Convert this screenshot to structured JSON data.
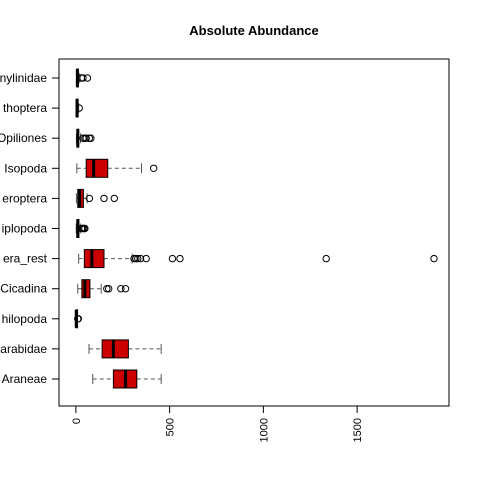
{
  "chart_data": {
    "type": "boxplot",
    "title": "Absolute Abundance",
    "xlabel": "",
    "ylabel": "",
    "orientation": "horizontal",
    "xlim": [
      -90,
      1990
    ],
    "x_ticks": [
      0,
      500,
      1000,
      1500
    ],
    "x_tick_labels": [
      "0",
      "500",
      "1000",
      "1500"
    ],
    "grid": false,
    "categories": [
      "Staphylinidae",
      "Orthoptera",
      "Opiliones",
      "Isopoda",
      "Heteroptera",
      "Diplopoda",
      "Coleoptera_rest",
      "Cicadina",
      "Chilopoda",
      "Carabidae",
      "Araneae"
    ],
    "category_labels_visible": [
      "nylinidae",
      "thoptera",
      "Opiliones",
      "Isopoda",
      "eroptera",
      "iplopoda",
      "era_rest",
      "Cicadina",
      "hilopoda",
      "arabidae",
      "Araneae"
    ],
    "boxes": [
      {
        "min": 3,
        "q1": 5,
        "median": 8,
        "q3": 12,
        "max": 20,
        "outliers": [
          30,
          38,
          62
        ]
      },
      {
        "min": 2,
        "q1": 4,
        "median": 6,
        "q3": 9,
        "max": 15,
        "outliers": [
          18
        ]
      },
      {
        "min": 3,
        "q1": 6,
        "median": 10,
        "q3": 15,
        "max": 25,
        "outliers": [
          38,
          48,
          55,
          72,
          80
        ]
      },
      {
        "min": 5,
        "q1": 55,
        "median": 95,
        "q3": 170,
        "max": 350,
        "outliers": [
          415
        ]
      },
      {
        "min": 3,
        "q1": 10,
        "median": 20,
        "q3": 40,
        "max": 60,
        "outliers": [
          72,
          150,
          205
        ]
      },
      {
        "min": 2,
        "q1": 6,
        "median": 10,
        "q3": 16,
        "max": 24,
        "outliers": [
          30,
          36,
          42,
          48
        ]
      },
      {
        "min": 15,
        "q1": 45,
        "median": 85,
        "q3": 150,
        "max": 300,
        "outliers": [
          310,
          320,
          330,
          345,
          375,
          515,
          555,
          1335,
          1910
        ]
      },
      {
        "min": 10,
        "q1": 32,
        "median": 48,
        "q3": 75,
        "max": 135,
        "outliers": [
          165,
          175,
          240,
          265
        ]
      },
      {
        "min": 0,
        "q1": 1,
        "median": 2,
        "q3": 4,
        "max": 8,
        "outliers": [
          10,
          13
        ]
      },
      {
        "min": 70,
        "q1": 140,
        "median": 200,
        "q3": 280,
        "max": 455,
        "outliers": []
      },
      {
        "min": 90,
        "q1": 200,
        "median": 265,
        "q3": 325,
        "max": 455,
        "outliers": []
      }
    ],
    "colors": {
      "box_fill": "#cc0000",
      "box_stroke": "#000000",
      "whisker": "#555555",
      "outlier": "#000000"
    }
  }
}
